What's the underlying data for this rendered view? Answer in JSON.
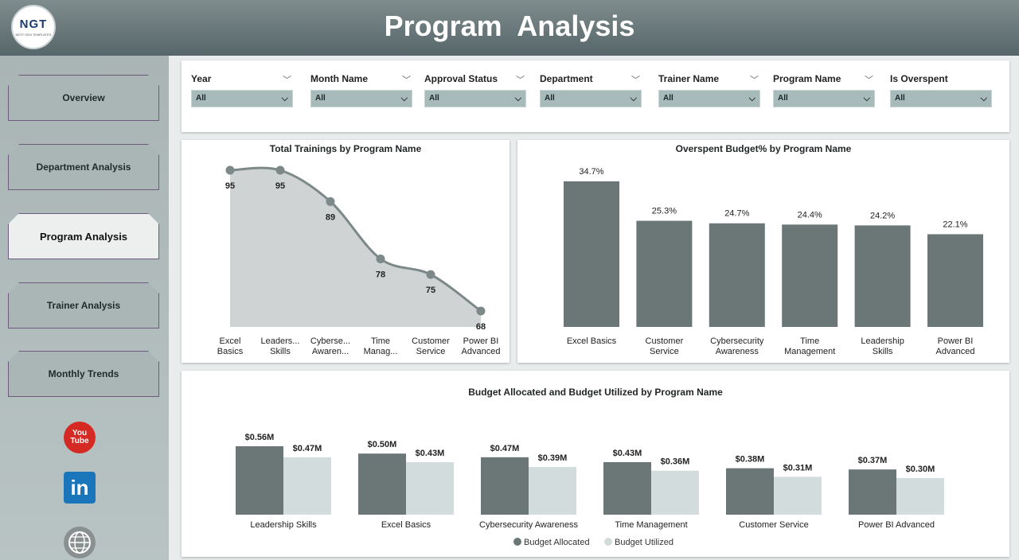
{
  "header": {
    "title": "Program  Analysis",
    "logo_text": "NGT",
    "logo_subtext": "NEXT GEN TEMPLATES"
  },
  "sidebar": {
    "items": [
      {
        "label": "Overview",
        "active": false
      },
      {
        "label": "Department Analysis",
        "active": false
      },
      {
        "label": "Program Analysis",
        "active": true
      },
      {
        "label": "Trainer Analysis",
        "active": false
      },
      {
        "label": "Monthly Trends",
        "active": false
      }
    ],
    "social": {
      "youtube_line1": "You",
      "youtube_line2": "Tube",
      "linkedin": "in"
    }
  },
  "filters": [
    {
      "label": "Year",
      "value": "All"
    },
    {
      "label": "Month Name",
      "value": "All"
    },
    {
      "label": "Approval Status",
      "value": "All"
    },
    {
      "label": "Department",
      "value": "All"
    },
    {
      "label": "Trainer Name",
      "value": "All"
    },
    {
      "label": "Program Name",
      "value": "All"
    },
    {
      "label": "Is Overspent",
      "value": "All"
    }
  ],
  "colors": {
    "bar_dark": "#6b7677",
    "bar_light": "#d2dcdc",
    "area_fill": "#cfd3d3",
    "line": "#7d8889"
  },
  "chart_data": [
    {
      "type": "area",
      "title": "Total Trainings by Program Name",
      "categories": [
        "Excel Basics",
        "Leaders... Skills",
        "Cyberse... Awaren...",
        "Time Manag...",
        "Customer Service",
        "Power BI Advanced"
      ],
      "values": [
        95,
        95,
        89,
        78,
        75,
        68
      ],
      "labels": [
        "95",
        "95",
        "89",
        "78",
        "75",
        "68"
      ]
    },
    {
      "type": "bar",
      "title": "Overspent Budget% by Program Name",
      "categories": [
        "Excel Basics",
        "Customer Service",
        "Cybersecurity Awareness",
        "Time Management",
        "Leadership Skills",
        "Power BI Advanced"
      ],
      "values": [
        34.7,
        25.3,
        24.7,
        24.4,
        24.2,
        22.1
      ],
      "labels": [
        "34.7%",
        "25.3%",
        "24.7%",
        "24.4%",
        "24.2%",
        "22.1%"
      ]
    },
    {
      "type": "bar",
      "title": "Budget Allocated and Budget Utilized by Program Name",
      "categories": [
        "Leadership Skills",
        "Excel Basics",
        "Cybersecurity Awareness",
        "Time Management",
        "Customer Service",
        "Power BI Advanced"
      ],
      "series": [
        {
          "name": "Budget Allocated",
          "values": [
            0.56,
            0.5,
            0.47,
            0.43,
            0.38,
            0.37
          ],
          "labels": [
            "$0.56M",
            "$0.50M",
            "$0.47M",
            "$0.43M",
            "$0.38M",
            "$0.37M"
          ]
        },
        {
          "name": "Budget Utilized",
          "values": [
            0.47,
            0.43,
            0.39,
            0.36,
            0.31,
            0.3
          ],
          "labels": [
            "$0.47M",
            "$0.43M",
            "$0.39M",
            "$0.36M",
            "$0.31M",
            "$0.30M"
          ]
        }
      ],
      "legend": "bottom"
    }
  ]
}
